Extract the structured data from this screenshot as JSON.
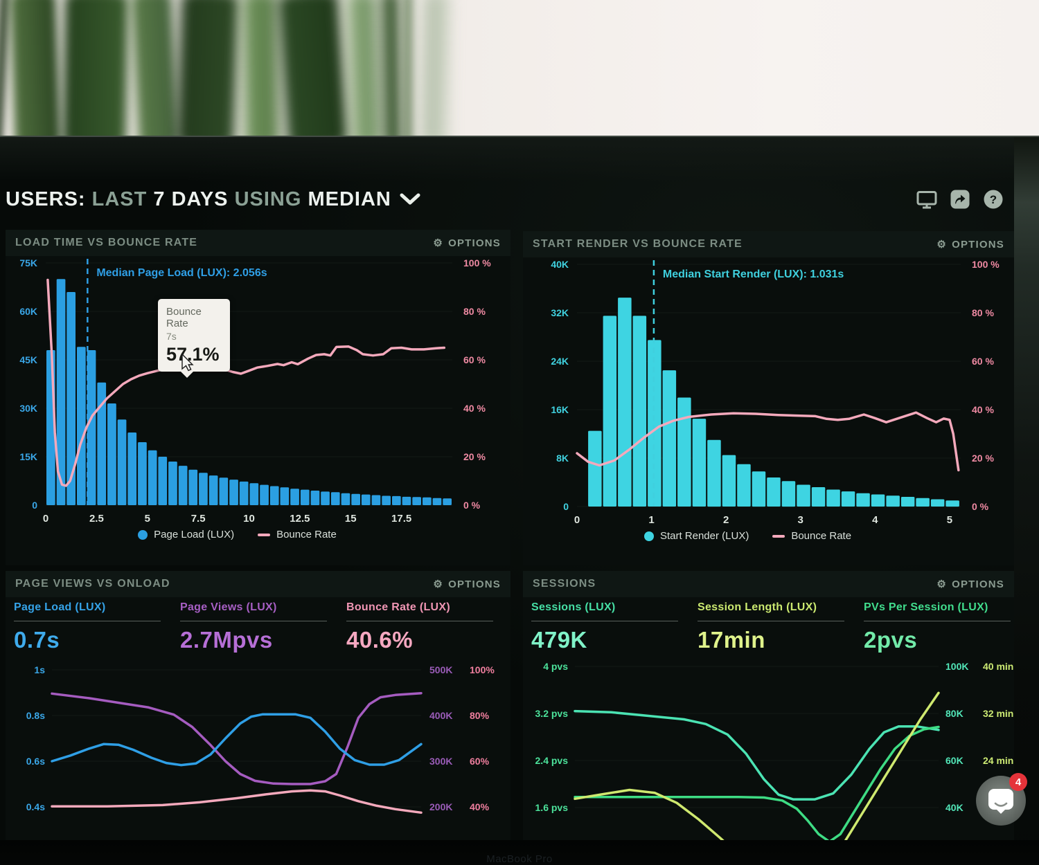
{
  "header": {
    "title_parts": [
      {
        "text": "USERS:",
        "emphasis": true
      },
      {
        "text": "LAST",
        "emphasis": false
      },
      {
        "text": "7 DAYS",
        "emphasis": true
      },
      {
        "text": "USING",
        "emphasis": false
      },
      {
        "text": "MEDIAN",
        "emphasis": true
      }
    ],
    "icons": [
      "display-icon",
      "share-icon",
      "help-icon"
    ]
  },
  "panels": {
    "load_time": {
      "title": "LOAD TIME VS BOUNCE RATE",
      "options": "OPTIONS"
    },
    "start_render": {
      "title": "START RENDER VS BOUNCE RATE",
      "options": "OPTIONS"
    },
    "page_views": {
      "title": "PAGE VIEWS VS ONLOAD",
      "options": "OPTIONS"
    },
    "sessions": {
      "title": "SESSIONS",
      "options": "OPTIONS"
    }
  },
  "tooltip": {
    "title": "Bounce Rate",
    "x_value": "7s",
    "value": "57.1%"
  },
  "chat": {
    "badge": "4"
  },
  "bezel_text": "MacBook Pro",
  "colors": {
    "blue": "#2b9fe2",
    "cyan": "#3ed4e2",
    "pink_line": "#f4a9bc",
    "pink_axis": "#ef8aa3",
    "purple": "#a55cc0",
    "mint": "#52e6b8",
    "green": "#3edc84",
    "yellow_green": "#cfe96f"
  },
  "chart_data": [
    {
      "id": "load-time-vs-bounce-rate",
      "type": "bar+line",
      "title": "LOAD TIME VS BOUNCE RATE",
      "x_range": [
        0,
        20
      ],
      "bar_start": 0,
      "bar_step": 0.5,
      "x_ticks": [
        "0",
        "2.5",
        "5",
        "7.5",
        "10",
        "12.5",
        "15",
        "17.5"
      ],
      "left_axis": {
        "labels": [
          "75K",
          "60K",
          "45K",
          "30K",
          "15K",
          "0"
        ],
        "max_k": 75,
        "color": "#3aa7e8"
      },
      "right_axis": {
        "labels": [
          "100 %",
          "80 %",
          "60 %",
          "40 %",
          "20 %",
          "0 %"
        ],
        "max": 100,
        "color": "#ef8aa3"
      },
      "bar_color": "#2b9fe2",
      "bars_k": [
        48,
        70,
        66,
        49,
        48,
        38,
        31.5,
        26.5,
        22.5,
        19.5,
        17,
        15,
        13.5,
        12.2,
        11,
        10,
        9.2,
        8.5,
        7.9,
        7.3,
        6.8,
        6.3,
        5.9,
        5.5,
        5.1,
        4.8,
        4.5,
        4.2,
        4,
        3.7,
        3.5,
        3.3,
        3.1,
        2.9,
        2.8,
        2.6,
        2.5,
        2.4,
        2.2,
        2.1
      ],
      "line_color": "#f4a9bc",
      "line_pct": [
        [
          0.1,
          93
        ],
        [
          0.3,
          62
        ],
        [
          0.45,
          30
        ],
        [
          0.6,
          14
        ],
        [
          0.8,
          8.5
        ],
        [
          1,
          8
        ],
        [
          1.2,
          10
        ],
        [
          1.45,
          17
        ],
        [
          1.7,
          25
        ],
        [
          2,
          32
        ],
        [
          2.3,
          37
        ],
        [
          2.6,
          40
        ],
        [
          3,
          44
        ],
        [
          3.4,
          47
        ],
        [
          3.8,
          50
        ],
        [
          4.2,
          52
        ],
        [
          4.6,
          53.5
        ],
        [
          5,
          54.5
        ],
        [
          5.5,
          55.5
        ],
        [
          6,
          56.3
        ],
        [
          6.5,
          57
        ],
        [
          7,
          57.1
        ],
        [
          7.6,
          57
        ],
        [
          8.2,
          56.8
        ],
        [
          8.8,
          56
        ],
        [
          9.2,
          55
        ],
        [
          9.6,
          54.3
        ],
        [
          10,
          55.5
        ],
        [
          10.4,
          56.8
        ],
        [
          10.9,
          57.5
        ],
        [
          11.4,
          58.3
        ],
        [
          11.7,
          57.8
        ],
        [
          12.1,
          59
        ],
        [
          12.4,
          58.2
        ],
        [
          12.9,
          60.5
        ],
        [
          13.3,
          62
        ],
        [
          13.7,
          62.3
        ],
        [
          14,
          61.8
        ],
        [
          14.3,
          65.3
        ],
        [
          14.9,
          65.5
        ],
        [
          15.3,
          64
        ],
        [
          15.6,
          62.3
        ],
        [
          16.1,
          61.8
        ],
        [
          16.6,
          62.3
        ],
        [
          17,
          64.8
        ],
        [
          17.5,
          65
        ],
        [
          18,
          64.3
        ],
        [
          18.6,
          64.3
        ],
        [
          19.2,
          64.8
        ],
        [
          19.6,
          65
        ]
      ],
      "median": {
        "x": 2.056,
        "label": "Median Page Load (LUX): 2.056s",
        "color": "#2f9fe6"
      },
      "legend": [
        {
          "marker": "dot",
          "color": "#2b9fe2",
          "label": "Page Load (LUX)"
        },
        {
          "marker": "line",
          "color": "#f4a9bc",
          "label": "Bounce Rate"
        }
      ]
    },
    {
      "id": "start-render-vs-bounce-rate",
      "type": "bar+line",
      "title": "START RENDER VS BOUNCE RATE",
      "x_range": [
        0,
        5.15
      ],
      "bar_start": 0.14,
      "bar_step": 0.2,
      "x_ticks": [
        "0",
        "1",
        "2",
        "3",
        "4",
        "5"
      ],
      "left_axis": {
        "labels": [
          "40K",
          "32K",
          "24K",
          "16K",
          "8K",
          "0"
        ],
        "max_k": 40,
        "color": "#40d2e0"
      },
      "right_axis": {
        "labels": [
          "100 %",
          "80 %",
          "60 %",
          "40 %",
          "20 %",
          "0 %"
        ],
        "max": 100,
        "color": "#ef8aa3"
      },
      "bar_color": "#3ed4e2",
      "bars_k": [
        12.5,
        31.5,
        34.5,
        31.5,
        27.5,
        22.5,
        18,
        14.5,
        11,
        8.5,
        7,
        5.8,
        4.8,
        4.2,
        3.6,
        3.2,
        2.8,
        2.5,
        2.2,
        2,
        1.8,
        1.6,
        1.4,
        1.2,
        1
      ],
      "line_color": "#f4a9bc",
      "line_pct": [
        [
          0,
          22
        ],
        [
          0.15,
          18.5
        ],
        [
          0.3,
          17
        ],
        [
          0.5,
          19
        ],
        [
          0.7,
          23.5
        ],
        [
          0.9,
          28.5
        ],
        [
          1.1,
          33
        ],
        [
          1.3,
          35.5
        ],
        [
          1.5,
          37
        ],
        [
          1.8,
          38
        ],
        [
          2.1,
          38.5
        ],
        [
          2.4,
          38.3
        ],
        [
          2.7,
          37.8
        ],
        [
          3,
          37.5
        ],
        [
          3.2,
          37.3
        ],
        [
          3.35,
          36.2
        ],
        [
          3.5,
          35.8
        ],
        [
          3.65,
          36.2
        ],
        [
          3.85,
          38
        ],
        [
          4,
          36.5
        ],
        [
          4.15,
          34.8
        ],
        [
          4.35,
          36.8
        ],
        [
          4.55,
          38.8
        ],
        [
          4.7,
          36.5
        ],
        [
          4.82,
          34.8
        ],
        [
          4.92,
          36.3
        ],
        [
          5,
          35.8
        ],
        [
          5.05,
          30
        ],
        [
          5.12,
          15
        ]
      ],
      "median": {
        "x": 1.031,
        "label": "Median Start Render (LUX): 1.031s",
        "color": "#3fd0de"
      },
      "legend": [
        {
          "marker": "dot",
          "color": "#3ed4e2",
          "label": "Start Render (LUX)"
        },
        {
          "marker": "line",
          "color": "#f4a9bc",
          "label": "Bounce Rate"
        }
      ]
    },
    {
      "id": "page-views-vs-onload",
      "type": "line",
      "title": "PAGE VIEWS VS ONLOAD",
      "metrics": [
        {
          "label": "Page Load (LUX)",
          "value": "0.7s",
          "label_color": "#35a3e8",
          "value_color": "#3fabec"
        },
        {
          "label": "Page Views (LUX)",
          "value": "2.7Mpvs",
          "label_color": "#a75fc4",
          "value_color": "#b66fd6"
        },
        {
          "label": "Bounce Rate (LUX)",
          "value": "40.6%",
          "label_color": "#f096b4",
          "value_color": "#f6a8c1"
        }
      ],
      "left_axis": {
        "labels": [
          "1s",
          "0.8s",
          "0.6s",
          "0.4s"
        ],
        "color": "#3aa7e8"
      },
      "right_axis": {
        "rows": [
          [
            "500K",
            "100%"
          ],
          [
            "400K",
            "80%"
          ],
          [
            "300K",
            "60%"
          ],
          [
            "200K",
            "40%"
          ]
        ],
        "colors": [
          "#9a5cb8",
          "#f07f9f"
        ]
      },
      "series": [
        {
          "name": "Page Views (LUX)",
          "color": "#a55cc0",
          "unit": "K",
          "axis": [
            500,
            100
          ],
          "points": [
            [
              0,
              448
            ],
            [
              0.1,
              438
            ],
            [
              0.18,
              428
            ],
            [
              0.26,
              418
            ],
            [
              0.33,
              402
            ],
            [
              0.38,
              375
            ],
            [
              0.43,
              335
            ],
            [
              0.47,
              300
            ],
            [
              0.51,
              272
            ],
            [
              0.55,
              257
            ],
            [
              0.6,
              251
            ],
            [
              0.65,
              250
            ],
            [
              0.7,
              250
            ],
            [
              0.74,
              256
            ],
            [
              0.77,
              272
            ],
            [
              0.8,
              330
            ],
            [
              0.83,
              395
            ],
            [
              0.86,
              425
            ],
            [
              0.89,
              440
            ],
            [
              0.93,
              445
            ],
            [
              1,
              449
            ]
          ]
        },
        {
          "name": "Page Load (LUX)",
          "color": "#2f9fe6",
          "unit": "s",
          "axis": [
            1.0,
            0.2
          ],
          "points": [
            [
              0,
              0.6
            ],
            [
              0.05,
              0.625
            ],
            [
              0.1,
              0.655
            ],
            [
              0.14,
              0.675
            ],
            [
              0.18,
              0.672
            ],
            [
              0.22,
              0.65
            ],
            [
              0.27,
              0.615
            ],
            [
              0.31,
              0.592
            ],
            [
              0.35,
              0.583
            ],
            [
              0.39,
              0.59
            ],
            [
              0.43,
              0.63
            ],
            [
              0.47,
              0.7
            ],
            [
              0.51,
              0.765
            ],
            [
              0.54,
              0.795
            ],
            [
              0.57,
              0.805
            ],
            [
              0.66,
              0.805
            ],
            [
              0.7,
              0.79
            ],
            [
              0.74,
              0.73
            ],
            [
              0.78,
              0.655
            ],
            [
              0.82,
              0.605
            ],
            [
              0.86,
              0.585
            ],
            [
              0.9,
              0.585
            ],
            [
              0.94,
              0.605
            ],
            [
              1,
              0.675
            ]
          ]
        },
        {
          "name": "Bounce Rate (LUX)",
          "color": "#f4a9bc",
          "unit": "%",
          "axis": [
            100,
            20
          ],
          "points": [
            [
              0,
              40.2
            ],
            [
              0.15,
              40.2
            ],
            [
              0.3,
              40.8
            ],
            [
              0.4,
              42
            ],
            [
              0.5,
              43.8
            ],
            [
              0.58,
              45.5
            ],
            [
              0.65,
              46.8
            ],
            [
              0.7,
              47.2
            ],
            [
              0.74,
              46.8
            ],
            [
              0.78,
              45
            ],
            [
              0.83,
              42.5
            ],
            [
              0.88,
              40.5
            ],
            [
              0.93,
              39
            ],
            [
              1,
              37.5
            ]
          ]
        }
      ]
    },
    {
      "id": "sessions",
      "type": "line",
      "title": "SESSIONS",
      "metrics": [
        {
          "label": "Sessions (LUX)",
          "value": "479K",
          "label_color": "#46dfa5",
          "value_color": "#80f2c8"
        },
        {
          "label": "Session Length (LUX)",
          "value": "17min",
          "label_color": "#cbe970",
          "value_color": "#dff28b"
        },
        {
          "label": "PVs Per Session (LUX)",
          "value": "2pvs",
          "label_color": "#41dd8d",
          "value_color": "#72eaa9"
        }
      ],
      "left_axis": {
        "labels": [
          "4 pvs",
          "3.2 pvs",
          "2.4 pvs",
          "1.6 pvs"
        ],
        "color": "#4ce29b"
      },
      "right_axis": {
        "rows": [
          [
            "100K",
            "40 min"
          ],
          [
            "80K",
            "32 min"
          ],
          [
            "60K",
            "24 min"
          ],
          [
            "40K",
            ""
          ]
        ],
        "colors": [
          "#52e6b8",
          "#cdeb74"
        ]
      },
      "series": [
        {
          "name": "Sessions (LUX)",
          "color": "#4be3b3",
          "unit": "K",
          "axis": [
            100,
            20
          ],
          "points": [
            [
              0,
              81
            ],
            [
              0.1,
              80.5
            ],
            [
              0.2,
              79
            ],
            [
              0.3,
              77.5
            ],
            [
              0.36,
              75.5
            ],
            [
              0.42,
              71
            ],
            [
              0.47,
              63
            ],
            [
              0.52,
              52
            ],
            [
              0.56,
              45.5
            ],
            [
              0.6,
              43.5
            ],
            [
              0.66,
              43.5
            ],
            [
              0.71,
              46
            ],
            [
              0.76,
              54
            ],
            [
              0.81,
              65
            ],
            [
              0.85,
              72
            ],
            [
              0.89,
              74.5
            ],
            [
              0.94,
              74.5
            ],
            [
              1,
              73
            ]
          ]
        },
        {
          "name": "PVs Per Session (LUX)",
          "color": "#3edc84",
          "unit": "pvs",
          "axis": [
            4,
            0.8
          ],
          "points": [
            [
              0,
              1.78
            ],
            [
              0.45,
              1.78
            ],
            [
              0.52,
              1.77
            ],
            [
              0.57,
              1.72
            ],
            [
              0.61,
              1.58
            ],
            [
              0.64,
              1.38
            ],
            [
              0.67,
              1.15
            ],
            [
              0.7,
              1.02
            ],
            [
              0.73,
              1.15
            ],
            [
              0.76,
              1.45
            ],
            [
              0.8,
              1.85
            ],
            [
              0.84,
              2.25
            ],
            [
              0.88,
              2.6
            ],
            [
              0.92,
              2.82
            ],
            [
              0.96,
              2.93
            ],
            [
              1,
              2.97
            ]
          ]
        },
        {
          "name": "Session Length (LUX)",
          "color": "#cfe96f",
          "unit": "min",
          "axis": [
            40,
            8
          ],
          "points": [
            [
              0,
              17.5
            ],
            [
              0.08,
              18.3
            ],
            [
              0.15,
              19
            ],
            [
              0.22,
              18.5
            ],
            [
              0.28,
              16.8
            ],
            [
              0.34,
              14
            ],
            [
              0.4,
              10.8
            ],
            [
              0.45,
              8
            ],
            [
              0.55,
              4
            ],
            [
              0.65,
              4
            ],
            [
              0.72,
              8
            ],
            [
              0.78,
              14
            ],
            [
              0.84,
              20
            ],
            [
              0.9,
              26
            ],
            [
              0.95,
              31
            ],
            [
              1,
              35.5
            ]
          ]
        }
      ]
    }
  ]
}
